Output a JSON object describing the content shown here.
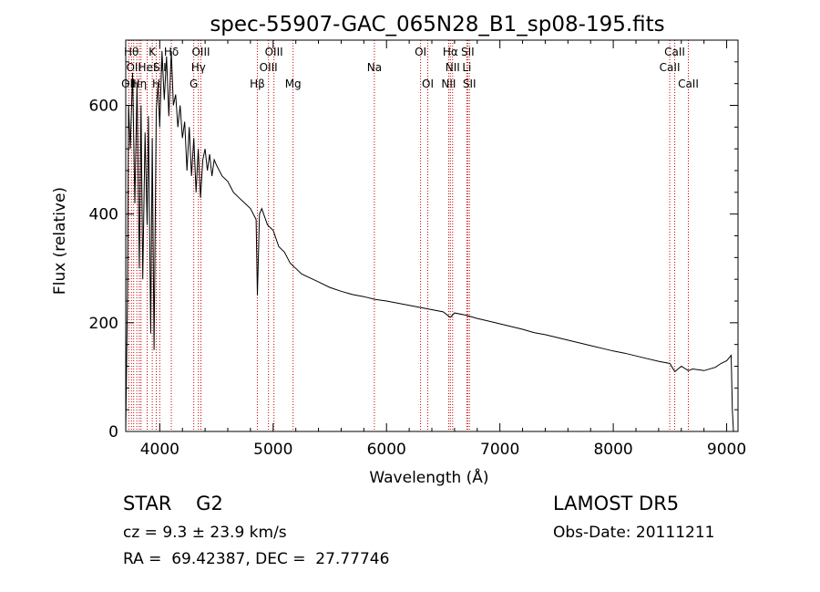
{
  "chart_data": {
    "type": "line",
    "title": "spec-55907-GAC_065N28_B1_sp08-195.fits",
    "xlabel": "Wavelength (Å)",
    "ylabel": "Flux (relative)",
    "xlim": [
      3700,
      9100
    ],
    "ylim": [
      0,
      720
    ],
    "xticks": [
      4000,
      5000,
      6000,
      7000,
      8000,
      9000
    ],
    "yticks": [
      0,
      200,
      400,
      600
    ],
    "grid": false,
    "line_color": "#000000",
    "marker_color": "#cc0000",
    "series": [
      {
        "x": [
          3700,
          3715,
          3725,
          3740,
          3760,
          3780,
          3800,
          3820,
          3835,
          3850,
          3870,
          3889,
          3900,
          3920,
          3934,
          3950,
          3969,
          3985,
          4000,
          4020,
          4040,
          4060,
          4080,
          4102,
          4120,
          4140,
          4160,
          4180,
          4200,
          4220,
          4240,
          4260,
          4280,
          4300,
          4320,
          4340,
          4360,
          4380,
          4400,
          4420,
          4440,
          4460,
          4480,
          4500,
          4550,
          4600,
          4650,
          4700,
          4750,
          4800,
          4850,
          4861,
          4880,
          4900,
          4950,
          5000,
          5050,
          5100,
          5150,
          5200,
          5250,
          5300,
          5400,
          5500,
          5600,
          5700,
          5800,
          5900,
          6000,
          6100,
          6200,
          6300,
          6400,
          6500,
          6563,
          6600,
          6700,
          6800,
          6900,
          7000,
          7100,
          7200,
          7300,
          7400,
          7500,
          7600,
          7700,
          7800,
          7900,
          8000,
          8100,
          8200,
          8300,
          8400,
          8500,
          8542,
          8600,
          8662,
          8700,
          8800,
          8900,
          8950,
          9000,
          9040,
          9050,
          9060
        ],
        "values": [
          0,
          250,
          600,
          520,
          660,
          420,
          640,
          300,
          600,
          280,
          550,
          380,
          580,
          180,
          540,
          150,
          590,
          640,
          560,
          700,
          610,
          690,
          580,
          700,
          600,
          620,
          560,
          600,
          540,
          570,
          480,
          560,
          470,
          540,
          440,
          520,
          430,
          500,
          520,
          480,
          510,
          470,
          500,
          490,
          470,
          460,
          440,
          430,
          420,
          410,
          390,
          250,
          400,
          410,
          380,
          370,
          340,
          330,
          310,
          300,
          290,
          285,
          275,
          265,
          258,
          252,
          248,
          243,
          240,
          236,
          232,
          228,
          224,
          220,
          210,
          218,
          214,
          208,
          203,
          198,
          193,
          188,
          182,
          178,
          173,
          168,
          163,
          158,
          153,
          148,
          144,
          139,
          134,
          129,
          125,
          110,
          120,
          112,
          115,
          112,
          118,
          125,
          130,
          140,
          40,
          0
        ]
      }
    ],
    "lines": [
      {
        "x": 3727,
        "labels": [
          {
            "text": "OII",
            "row": 3
          }
        ]
      },
      {
        "x": 3750,
        "labels": [
          {
            "text": "Hθ",
            "row": 1
          }
        ]
      },
      {
        "x": 3770,
        "labels": [
          {
            "text": "OII",
            "row": 2
          }
        ]
      },
      {
        "x": 3798,
        "labels": []
      },
      {
        "x": 3820,
        "labels": [
          {
            "text": "Hη",
            "row": 3
          }
        ]
      },
      {
        "x": 3835,
        "labels": []
      },
      {
        "x": 3889,
        "labels": [
          {
            "text": "HeI",
            "row": 2
          }
        ]
      },
      {
        "x": 3934,
        "labels": [
          {
            "text": "K",
            "row": 1
          }
        ]
      },
      {
        "x": 3969,
        "labels": [
          {
            "text": "H",
            "row": 3
          }
        ]
      },
      {
        "x": 4000,
        "labels": [
          {
            "text": "SII",
            "row": 2
          }
        ]
      },
      {
        "x": 4102,
        "labels": [
          {
            "text": "Hδ",
            "row": 1
          }
        ]
      },
      {
        "x": 4300,
        "labels": [
          {
            "text": "G",
            "row": 3
          }
        ]
      },
      {
        "x": 4341,
        "labels": [
          {
            "text": "Hγ",
            "row": 2
          }
        ]
      },
      {
        "x": 4363,
        "labels": [
          {
            "text": "OIII",
            "row": 1
          }
        ]
      },
      {
        "x": 4861,
        "labels": [
          {
            "text": "Hβ",
            "row": 3
          }
        ]
      },
      {
        "x": 4959,
        "labels": [
          {
            "text": "OIII",
            "row": 2
          }
        ]
      },
      {
        "x": 5007,
        "labels": [
          {
            "text": "OIII",
            "row": 1
          }
        ]
      },
      {
        "x": 5176,
        "labels": [
          {
            "text": "Mg",
            "row": 3
          }
        ]
      },
      {
        "x": 5893,
        "labels": [
          {
            "text": "Na",
            "row": 2
          }
        ]
      },
      {
        "x": 6300,
        "labels": [
          {
            "text": "OI",
            "row": 1
          }
        ]
      },
      {
        "x": 6364,
        "labels": [
          {
            "text": "OI",
            "row": 3
          }
        ]
      },
      {
        "x": 6548,
        "labels": [
          {
            "text": "NII",
            "row": 3
          }
        ]
      },
      {
        "x": 6563,
        "labels": [
          {
            "text": "Hα",
            "row": 1
          }
        ]
      },
      {
        "x": 6583,
        "labels": [
          {
            "text": "NII",
            "row": 2
          }
        ]
      },
      {
        "x": 6708,
        "labels": [
          {
            "text": "Li",
            "row": 2
          }
        ]
      },
      {
        "x": 6716,
        "labels": [
          {
            "text": "SII",
            "row": 1
          }
        ]
      },
      {
        "x": 6731,
        "labels": [
          {
            "text": "SII",
            "row": 3
          }
        ]
      },
      {
        "x": 8498,
        "labels": [
          {
            "text": "CaII",
            "row": 2
          }
        ]
      },
      {
        "x": 8542,
        "labels": [
          {
            "text": "CaII",
            "row": 1
          }
        ]
      },
      {
        "x": 8662,
        "labels": [
          {
            "text": "CaII",
            "row": 3
          }
        ]
      }
    ]
  },
  "info": {
    "class_line": "STAR    G2",
    "cz_line": "cz = 9.3 ± 23.9 km/s",
    "coords_line": "RA =  69.42387, DEC =  27.77746",
    "survey": "LAMOST DR5",
    "obs_date": "Obs-Date: 20111211"
  }
}
